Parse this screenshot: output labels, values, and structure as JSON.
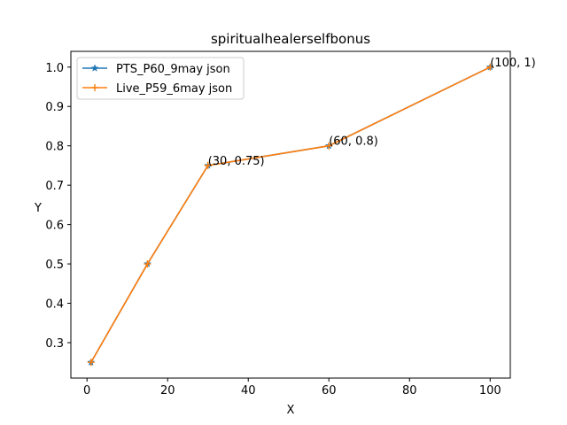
{
  "chart_data": {
    "type": "line",
    "title": "spiritualhealerselfbonus",
    "xlabel": "X",
    "ylabel": "Y",
    "xlim": [
      -4,
      105
    ],
    "ylim": [
      0.21,
      1.04
    ],
    "xticks": [
      0,
      20,
      40,
      60,
      80,
      100
    ],
    "yticks": [
      0.3,
      0.4,
      0.5,
      0.6,
      0.7,
      0.8,
      0.9,
      1.0
    ],
    "xtick_labels": [
      "0",
      "20",
      "40",
      "60",
      "80",
      "100"
    ],
    "ytick_labels": [
      "0.3",
      "0.4",
      "0.5",
      "0.6",
      "0.7",
      "0.8",
      "0.9",
      "1.0"
    ],
    "grid": false,
    "legend_position": "top-left",
    "series": [
      {
        "name": "PTS_P60_9may json",
        "color": "#1f77b4",
        "marker": "star",
        "x": [
          1,
          15,
          30,
          60,
          100
        ],
        "y": [
          0.25,
          0.5,
          0.75,
          0.8,
          1.0
        ]
      },
      {
        "name": "Live_P59_6may json",
        "color": "#ff7f0e",
        "marker": "plus",
        "x": [
          1,
          15,
          30,
          60,
          100
        ],
        "y": [
          0.25,
          0.5,
          0.75,
          0.8,
          1.0
        ]
      }
    ],
    "annotations": [
      {
        "text": "(30, 0.75)",
        "x": 30,
        "y": 0.75
      },
      {
        "text": "(60, 0.8)",
        "x": 60,
        "y": 0.8
      },
      {
        "text": "(100, 1)",
        "x": 100,
        "y": 1.0
      }
    ]
  }
}
